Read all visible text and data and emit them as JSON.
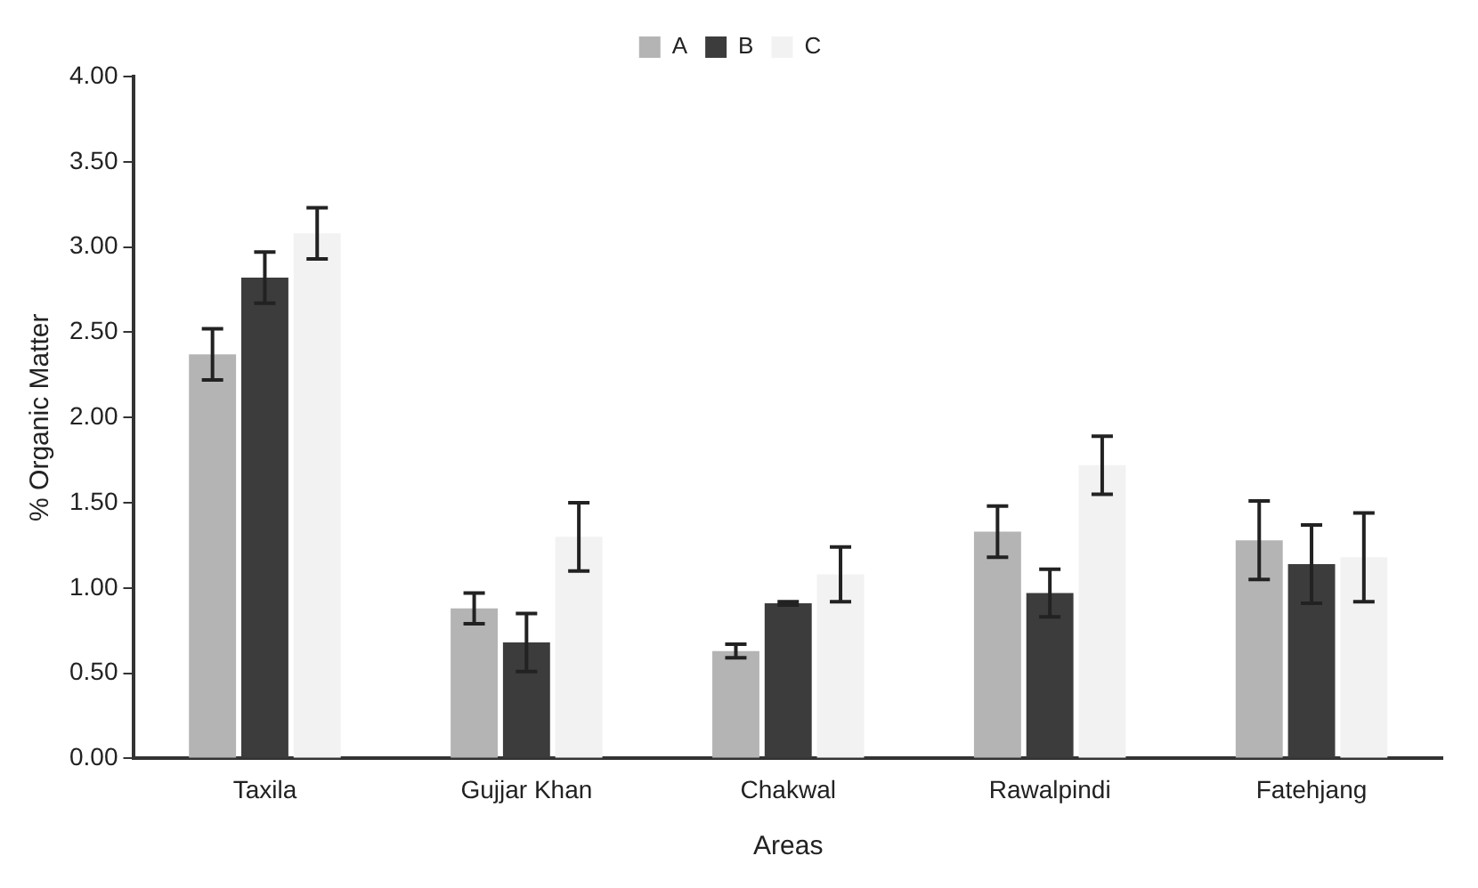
{
  "chart_data": {
    "type": "bar",
    "xlabel": "Areas",
    "ylabel": "% Organic Matter",
    "categories": [
      "Taxila",
      "Gujjar Khan",
      "Chakwal",
      "Rawalpindi",
      "Fatehjang"
    ],
    "series": [
      {
        "name": "A",
        "color": "#b4b4b4",
        "values": [
          2.37,
          0.88,
          0.63,
          1.33,
          1.28
        ],
        "errors": [
          0.15,
          0.09,
          0.04,
          0.15,
          0.23
        ]
      },
      {
        "name": "B",
        "color": "#3c3c3c",
        "values": [
          2.82,
          0.68,
          0.91,
          0.97,
          1.14
        ],
        "errors": [
          0.15,
          0.17,
          0.01,
          0.14,
          0.23
        ]
      },
      {
        "name": "C",
        "color": "#f2f2f2",
        "values": [
          3.08,
          1.3,
          1.08,
          1.72,
          1.18
        ],
        "errors": [
          0.15,
          0.2,
          0.16,
          0.17,
          0.26
        ]
      }
    ],
    "ylim": [
      0,
      4
    ],
    "yticks": [
      {
        "value": 0,
        "label": "0.00"
      },
      {
        "value": 0.5,
        "label": "0.50"
      },
      {
        "value": 1,
        "label": "1.00"
      },
      {
        "value": 1.5,
        "label": "1.50"
      },
      {
        "value": 2,
        "label": "2.00"
      },
      {
        "value": 2.5,
        "label": "2.50"
      },
      {
        "value": 3,
        "label": "3.00"
      },
      {
        "value": 3.5,
        "label": "3.50"
      },
      {
        "value": 4,
        "label": "4.00"
      }
    ],
    "grid": false,
    "legend": "top"
  }
}
